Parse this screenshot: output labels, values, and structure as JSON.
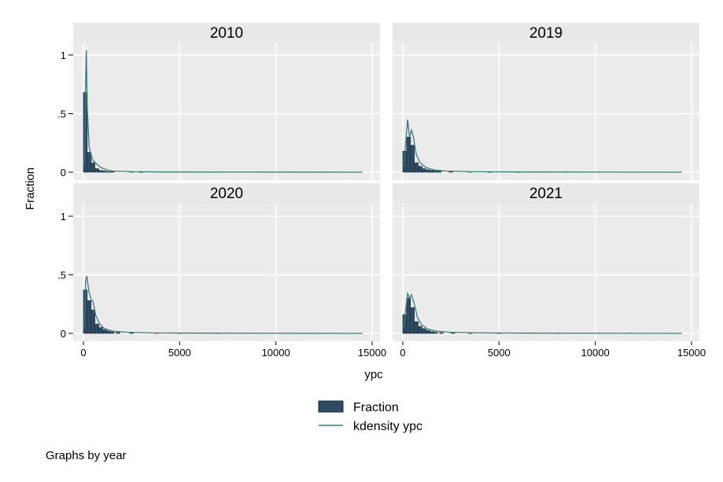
{
  "chart_data": {
    "type": "bar",
    "note": "Graphs by year",
    "xlabel": "ypc",
    "ylabel": "Fraction",
    "xlim": [
      0,
      15000
    ],
    "ylim": [
      0,
      1.04
    ],
    "x_ticks": [
      0,
      5000,
      10000,
      15000
    ],
    "x_tick_labels": [
      "0",
      "5000",
      "10000",
      "15000"
    ],
    "y_ticks": [
      0,
      0.5,
      1
    ],
    "y_tick_labels": [
      "0",
      ".5",
      "1"
    ],
    "grid": true,
    "legend_position": "bottom-center",
    "legend": [
      {
        "label": "Fraction",
        "kind": "bar",
        "color": "#2f4a63"
      },
      {
        "label": "kdensity ypc",
        "kind": "line",
        "color": "#3a7a76"
      }
    ],
    "panel_background": "#ebebeb",
    "strip_background": "#e8e8e8",
    "panels": [
      {
        "title": "2010",
        "bars": [
          {
            "x": 100,
            "y": 0.68
          },
          {
            "x": 300,
            "y": 0.17
          },
          {
            "x": 500,
            "y": 0.08
          },
          {
            "x": 700,
            "y": 0.03
          },
          {
            "x": 900,
            "y": 0.015
          },
          {
            "x": 1100,
            "y": 0.01
          },
          {
            "x": 1300,
            "y": 0.005
          },
          {
            "x": 1500,
            "y": 0.004
          },
          {
            "x": 2500,
            "y": 0.003
          },
          {
            "x": 3000,
            "y": 0.002
          }
        ],
        "kdensity": [
          {
            "x": 50,
            "y": 0.05
          },
          {
            "x": 100,
            "y": 0.6
          },
          {
            "x": 150,
            "y": 1.04
          },
          {
            "x": 200,
            "y": 0.55
          },
          {
            "x": 300,
            "y": 0.22
          },
          {
            "x": 400,
            "y": 0.15
          },
          {
            "x": 500,
            "y": 0.1
          },
          {
            "x": 700,
            "y": 0.07
          },
          {
            "x": 900,
            "y": 0.04
          },
          {
            "x": 1200,
            "y": 0.02
          },
          {
            "x": 1500,
            "y": 0.01
          },
          {
            "x": 2500,
            "y": 0.004
          },
          {
            "x": 4000,
            "y": 0.002
          },
          {
            "x": 8000,
            "y": 0.001
          },
          {
            "x": 14500,
            "y": 0.0
          }
        ]
      },
      {
        "title": "2019",
        "bars": [
          {
            "x": 100,
            "y": 0.18
          },
          {
            "x": 300,
            "y": 0.3
          },
          {
            "x": 500,
            "y": 0.23
          },
          {
            "x": 700,
            "y": 0.08
          },
          {
            "x": 900,
            "y": 0.05
          },
          {
            "x": 1100,
            "y": 0.03
          },
          {
            "x": 1300,
            "y": 0.02
          },
          {
            "x": 1500,
            "y": 0.015
          },
          {
            "x": 1700,
            "y": 0.01
          },
          {
            "x": 1900,
            "y": 0.008
          },
          {
            "x": 2500,
            "y": 0.004
          },
          {
            "x": 3500,
            "y": 0.003
          },
          {
            "x": 4500,
            "y": 0.002
          },
          {
            "x": 6000,
            "y": 0.003
          },
          {
            "x": 7500,
            "y": 0.002
          },
          {
            "x": 8500,
            "y": 0.003
          }
        ],
        "kdensity": [
          {
            "x": 50,
            "y": 0.05
          },
          {
            "x": 150,
            "y": 0.25
          },
          {
            "x": 250,
            "y": 0.45
          },
          {
            "x": 350,
            "y": 0.3
          },
          {
            "x": 450,
            "y": 0.36
          },
          {
            "x": 550,
            "y": 0.3
          },
          {
            "x": 700,
            "y": 0.15
          },
          {
            "x": 900,
            "y": 0.08
          },
          {
            "x": 1200,
            "y": 0.04
          },
          {
            "x": 1600,
            "y": 0.02
          },
          {
            "x": 2200,
            "y": 0.01
          },
          {
            "x": 3500,
            "y": 0.004
          },
          {
            "x": 6000,
            "y": 0.002
          },
          {
            "x": 10000,
            "y": 0.001
          },
          {
            "x": 14500,
            "y": 0.0
          }
        ]
      },
      {
        "title": "2020",
        "bars": [
          {
            "x": 100,
            "y": 0.37
          },
          {
            "x": 300,
            "y": 0.28
          },
          {
            "x": 500,
            "y": 0.2
          },
          {
            "x": 700,
            "y": 0.08
          },
          {
            "x": 900,
            "y": 0.05
          },
          {
            "x": 1100,
            "y": 0.03
          },
          {
            "x": 1300,
            "y": 0.02
          },
          {
            "x": 1500,
            "y": 0.012
          },
          {
            "x": 1800,
            "y": 0.008
          },
          {
            "x": 2500,
            "y": 0.004
          },
          {
            "x": 3800,
            "y": 0.003
          },
          {
            "x": 5000,
            "y": 0.002
          },
          {
            "x": 7000,
            "y": 0.002
          }
        ],
        "kdensity": [
          {
            "x": 50,
            "y": 0.05
          },
          {
            "x": 120,
            "y": 0.45
          },
          {
            "x": 180,
            "y": 0.49
          },
          {
            "x": 280,
            "y": 0.36
          },
          {
            "x": 380,
            "y": 0.3
          },
          {
            "x": 500,
            "y": 0.27
          },
          {
            "x": 650,
            "y": 0.15
          },
          {
            "x": 850,
            "y": 0.08
          },
          {
            "x": 1100,
            "y": 0.04
          },
          {
            "x": 1500,
            "y": 0.02
          },
          {
            "x": 2200,
            "y": 0.01
          },
          {
            "x": 3500,
            "y": 0.004
          },
          {
            "x": 6000,
            "y": 0.002
          },
          {
            "x": 10000,
            "y": 0.001
          },
          {
            "x": 14500,
            "y": 0.0
          }
        ]
      },
      {
        "title": "2021",
        "bars": [
          {
            "x": 100,
            "y": 0.16
          },
          {
            "x": 300,
            "y": 0.3
          },
          {
            "x": 500,
            "y": 0.22
          },
          {
            "x": 700,
            "y": 0.1
          },
          {
            "x": 900,
            "y": 0.06
          },
          {
            "x": 1100,
            "y": 0.04
          },
          {
            "x": 1300,
            "y": 0.025
          },
          {
            "x": 1500,
            "y": 0.015
          },
          {
            "x": 1700,
            "y": 0.01
          },
          {
            "x": 2000,
            "y": 0.006
          },
          {
            "x": 2600,
            "y": 0.004
          },
          {
            "x": 3500,
            "y": 0.003
          },
          {
            "x": 5000,
            "y": 0.002
          },
          {
            "x": 8000,
            "y": 0.002
          },
          {
            "x": 11800,
            "y": 0.002
          }
        ],
        "kdensity": [
          {
            "x": 50,
            "y": 0.05
          },
          {
            "x": 150,
            "y": 0.2
          },
          {
            "x": 250,
            "y": 0.34
          },
          {
            "x": 350,
            "y": 0.3
          },
          {
            "x": 450,
            "y": 0.33
          },
          {
            "x": 600,
            "y": 0.25
          },
          {
            "x": 750,
            "y": 0.14
          },
          {
            "x": 950,
            "y": 0.08
          },
          {
            "x": 1250,
            "y": 0.04
          },
          {
            "x": 1700,
            "y": 0.02
          },
          {
            "x": 2400,
            "y": 0.01
          },
          {
            "x": 3800,
            "y": 0.004
          },
          {
            "x": 6500,
            "y": 0.002
          },
          {
            "x": 11000,
            "y": 0.001
          },
          {
            "x": 14500,
            "y": 0.0
          }
        ]
      }
    ]
  }
}
